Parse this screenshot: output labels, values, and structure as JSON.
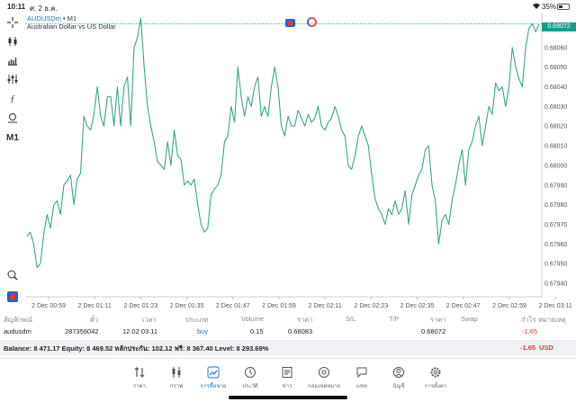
{
  "status": {
    "time": "10:11",
    "date": "ศ. 2 ธ.ค.",
    "battery": "35%",
    "battery_level": 0.35
  },
  "chart": {
    "symbol": "AUDUSDm",
    "timeframe_suffix": "• M1",
    "description": "Australian Dollar vs US Dollar",
    "current_price": "0.68072",
    "y_ticks": [
      "0.68070",
      "0.68060",
      "0.68050",
      "0.68040",
      "0.68030",
      "0.68020",
      "0.68010",
      "0.68000",
      "0.67990",
      "0.67980",
      "0.67970",
      "0.67960",
      "0.67950",
      "0.67940"
    ],
    "x_ticks": [
      "2 Dec 00:59",
      "2 Dec 01:11",
      "2 Dec 01:23",
      "2 Dec 01:35",
      "2 Dec 01:47",
      "2 Dec 01:59",
      "2 Dec 02:11",
      "2 Dec 02:23",
      "2 Dec 02:35",
      "2 Dec 02:47",
      "2 Dec 02:59",
      "2 Dec 03:11"
    ],
    "line_color": "#3aa58a",
    "prices": [
      0.67964,
      0.67966,
      0.6796,
      0.67948,
      0.6795,
      0.67965,
      0.67975,
      0.67968,
      0.6798,
      0.67982,
      0.67975,
      0.6799,
      0.67992,
      0.67995,
      0.6798,
      0.67993,
      0.67996,
      0.68025,
      0.6802,
      0.68018,
      0.68026,
      0.6804,
      0.68025,
      0.6802,
      0.68035,
      0.68035,
      0.6802,
      0.6804,
      0.6802,
      0.6804,
      0.68045,
      0.6802,
      0.6806,
      0.68065,
      0.68075,
      0.6805,
      0.6803,
      0.6802,
      0.68012,
      0.68002,
      0.68,
      0.67998,
      0.68012,
      0.68,
      0.68018,
      0.68005,
      0.68003,
      0.6799,
      0.67992,
      0.6799,
      0.67993,
      0.6798,
      0.6797,
      0.67966,
      0.67968,
      0.67985,
      0.67988,
      0.6799,
      0.67995,
      0.68012,
      0.68015,
      0.6803,
      0.68022,
      0.6805,
      0.68035,
      0.68025,
      0.68035,
      0.6803,
      0.6804,
      0.68045,
      0.68025,
      0.6803,
      0.68025,
      0.6804,
      0.6805,
      0.6804,
      0.6802,
      0.68015,
      0.68025,
      0.6802,
      0.6802,
      0.68028,
      0.68024,
      0.6802,
      0.68026,
      0.68022,
      0.68024,
      0.6803,
      0.6802,
      0.68018,
      0.68022,
      0.68024,
      0.6803,
      0.68025,
      0.68018,
      0.68015,
      0.68,
      0.67998,
      0.68005,
      0.68015,
      0.6802,
      0.68015,
      0.6801,
      0.67995,
      0.67983,
      0.67978,
      0.67975,
      0.6797,
      0.67978,
      0.67975,
      0.67982,
      0.67975,
      0.67978,
      0.67987,
      0.6797,
      0.67985,
      0.6799,
      0.67995,
      0.67998,
      0.68008,
      0.6801,
      0.6799,
      0.67982,
      0.6796,
      0.67972,
      0.67975,
      0.6797,
      0.67982,
      0.6799,
      0.68,
      0.68008,
      0.6799,
      0.68008,
      0.68012,
      0.6802,
      0.68025,
      0.6801,
      0.6802,
      0.6803,
      0.68026,
      0.68042,
      0.68038,
      0.6804,
      0.6803,
      0.6804,
      0.6806,
      0.6805,
      0.68044,
      0.6804,
      0.6806,
      0.6807,
      0.68072,
      0.68068,
      0.68072
    ]
  },
  "table": {
    "headers": [
      "สัญลักษณ์",
      "ตั๋ว",
      "เวลา",
      "ประเภท",
      "Volume",
      "ราคา",
      "S/L",
      "T/P",
      "ราคา",
      "Swap",
      "กำไร",
      "หมายเหตุ"
    ],
    "row": {
      "symbol": "audusdm",
      "ticket": "287356042",
      "time": "12.02 03:11",
      "type": "buy",
      "volume": "0.15",
      "open_price": "0.68083",
      "current_price": "0.68072",
      "profit": "-1.65"
    }
  },
  "balance": {
    "text": "Balance: 8 471.17 Equity: 8 469.52 หลักประกัน: 102.12 ฟรี: 8 367.40 Level: 8 293.69%",
    "profit": "-1.65",
    "currency": "USD"
  },
  "tabs": [
    {
      "label": "ราคา",
      "icon": "quotes-arrows-icon"
    },
    {
      "label": "กราฟ",
      "icon": "candles-icon"
    },
    {
      "label": "การซื้อขาย",
      "icon": "trade-chart-icon",
      "active": true
    },
    {
      "label": "ประวัติ",
      "icon": "history-clock-icon"
    },
    {
      "label": "ข่าว",
      "icon": "news-icon"
    },
    {
      "label": "กล่องจดหมาย",
      "icon": "mailbox-at-icon"
    },
    {
      "label": "แชท",
      "icon": "chat-icon"
    },
    {
      "label": "บัญชี",
      "icon": "account-icon"
    },
    {
      "label": "การตั้งค่า",
      "icon": "settings-gear-icon"
    }
  ]
}
